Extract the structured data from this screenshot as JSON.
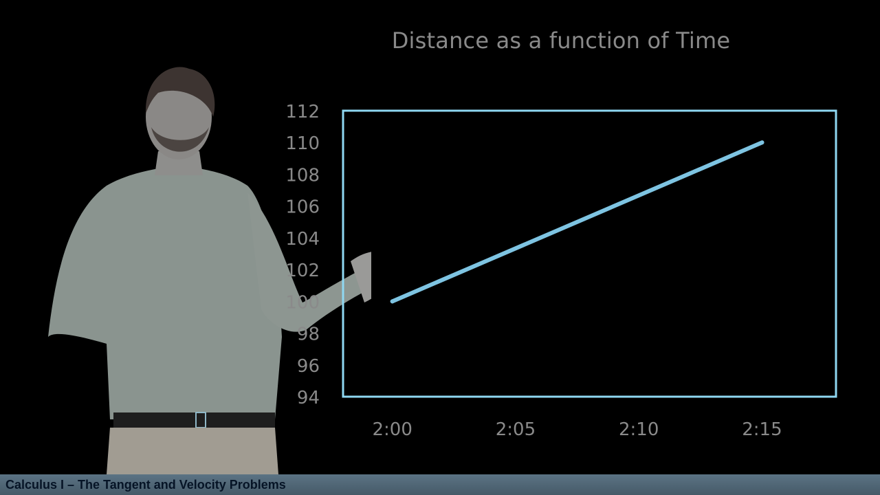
{
  "footer": {
    "course_title": "Calculus I – The Tangent and Velocity Problems"
  },
  "colors": {
    "background": "#000000",
    "plot_border": "#8fd8f2",
    "series_line": "#7ec4e2",
    "text": "#8a8a8a",
    "footer_bar": "#52697a",
    "footer_text": "#061426"
  },
  "chart_data": {
    "type": "line",
    "title": "Distance as a function of Time",
    "xlabel": "",
    "ylabel": "",
    "x_ticks": [
      "2:00",
      "2:05",
      "2:10",
      "2:15"
    ],
    "y_ticks": [
      94,
      96,
      98,
      100,
      102,
      104,
      106,
      108,
      110,
      112
    ],
    "xlim": [
      "1:58",
      "2:18"
    ],
    "ylim": [
      94,
      112
    ],
    "grid": false,
    "legend": "none",
    "series": [
      {
        "x": [
          "2:00",
          "2:15"
        ],
        "y": [
          100,
          110
        ]
      }
    ]
  }
}
